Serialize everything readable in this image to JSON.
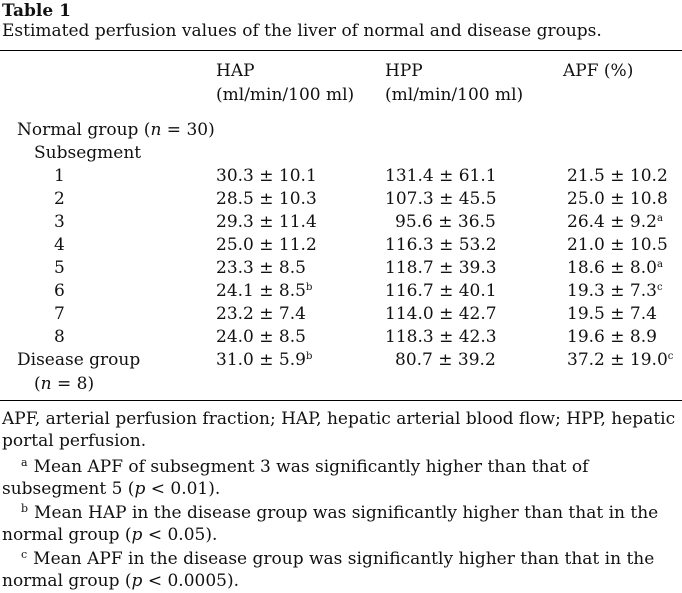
{
  "table": {
    "label": "Table 1",
    "caption": "Estimated perfusion values of the liver of normal and disease groups.",
    "columns": [
      {
        "name": "HAP",
        "unit": "(ml/min/100 ml)"
      },
      {
        "name": "HPP",
        "unit": "(ml/min/100 ml)"
      },
      {
        "name": "APF (%)",
        "unit": ""
      }
    ],
    "normal_group_label": "Normal group (",
    "normal_group_n_var": "n",
    "normal_group_n_rest": " = 30)",
    "subsegment_label": "Subsegment",
    "rows": [
      {
        "label": "1",
        "hap": "30.3 ± 10.1",
        "hap_sup": "",
        "hpp": "131.4 ± 61.1",
        "apf": "21.5 ± 10.2",
        "apf_sup": ""
      },
      {
        "label": "2",
        "hap": "28.5 ± 10.3",
        "hap_sup": "",
        "hpp": "107.3 ± 45.5",
        "apf": "25.0 ± 10.8",
        "apf_sup": ""
      },
      {
        "label": "3",
        "hap": "29.3 ± 11.4",
        "hap_sup": "",
        "hpp": "95.6 ± 36.5",
        "apf": "26.4 ± 9.2",
        "apf_sup": "a"
      },
      {
        "label": "4",
        "hap": "25.0 ± 11.2",
        "hap_sup": "",
        "hpp": "116.3 ± 53.2",
        "apf": "21.0 ± 10.5",
        "apf_sup": ""
      },
      {
        "label": "5",
        "hap": "23.3 ± 8.5",
        "hap_sup": "",
        "hpp": "118.7 ± 39.3",
        "apf": "18.6 ± 8.0",
        "apf_sup": "a"
      },
      {
        "label": "6",
        "hap": "24.1 ± 8.5",
        "hap_sup": "b",
        "hpp": "116.7 ± 40.1",
        "apf": "19.3 ± 7.3",
        "apf_sup": "c"
      },
      {
        "label": "7",
        "hap": "23.2 ± 7.4",
        "hap_sup": "",
        "hpp": "114.0 ± 42.7",
        "apf": "19.5 ± 7.4",
        "apf_sup": ""
      },
      {
        "label": "8",
        "hap": "24.0 ± 8.5",
        "hap_sup": "",
        "hpp": "118.3 ± 42.3",
        "apf": "19.6 ± 8.9",
        "apf_sup": ""
      }
    ],
    "disease": {
      "label": "Disease group",
      "n_open": "(",
      "n_var": "n",
      "n_rest": " = 8)",
      "hap": "31.0 ± 5.9",
      "hap_sup": "b",
      "hpp": "80.7 ± 39.2",
      "apf": "37.2 ± 19.0",
      "apf_sup": "c"
    }
  },
  "footnotes": {
    "abbrev": "APF, arterial perfusion fraction; HAP, hepatic arterial blood flow; HPP, hepatic portal perfusion.",
    "items": [
      {
        "mark": "a",
        "text": "Mean APF of subsegment 3 was significantly higher than that of subsegment 5 (",
        "pvar": "p",
        "ptail": " < 0.01)."
      },
      {
        "mark": "b",
        "text": "Mean HAP in the disease group was significantly higher than that in the normal group (",
        "pvar": "p",
        "ptail": " < 0.05)."
      },
      {
        "mark": "c",
        "text": "Mean APF in the disease group was significantly higher than that in the normal group (",
        "pvar": "p",
        "ptail": " < 0.0005)."
      }
    ]
  }
}
